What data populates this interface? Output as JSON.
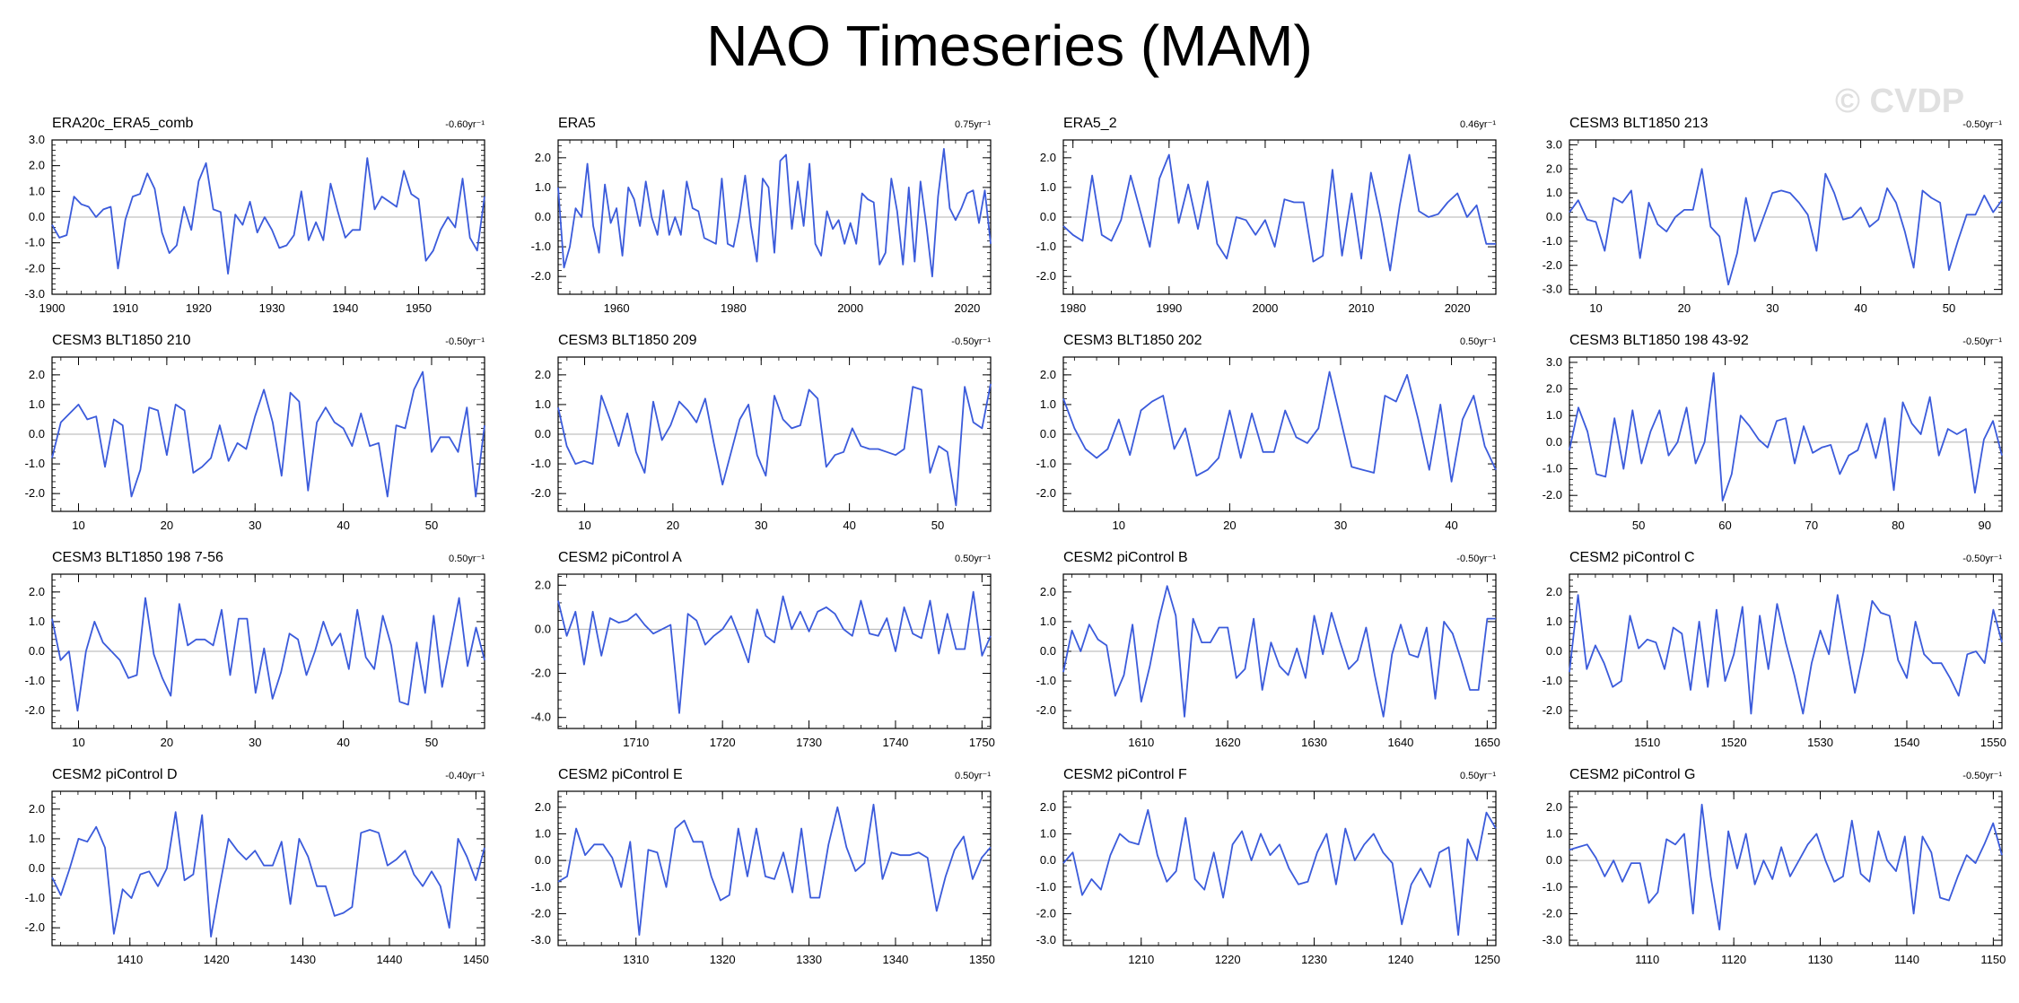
{
  "title": "NAO Timeseries (MAM)",
  "watermark": "© CVDP",
  "colors": {
    "line": "#3b5bdb",
    "zero": "#b0b0b0",
    "axis": "#000000"
  },
  "chart_data": [
    {
      "type": "line",
      "name": "ERA20c_ERA5_comb",
      "trend": "-0.60yr⁻¹",
      "xlim": [
        1900,
        1959
      ],
      "xticks": [
        1900,
        1910,
        1920,
        1930,
        1940,
        1950
      ],
      "ylim": [
        -3,
        3
      ],
      "yticks": [
        3,
        2,
        1,
        0,
        -1,
        -2,
        -3
      ],
      "values": [
        -0.3,
        -0.8,
        -0.7,
        0.8,
        0.5,
        0.4,
        0.0,
        0.3,
        0.4,
        -2.0,
        -0.1,
        0.8,
        0.9,
        1.7,
        1.1,
        -0.6,
        -1.4,
        -1.1,
        0.4,
        -0.5,
        1.4,
        2.1,
        0.3,
        0.2,
        -2.2,
        0.1,
        -0.3,
        0.6,
        -0.6,
        0.0,
        -0.5,
        -1.2,
        -1.1,
        -0.7,
        1.0,
        -0.9,
        -0.2,
        -0.9,
        1.3,
        0.2,
        -0.8,
        -0.5,
        -0.5,
        2.3,
        0.3,
        0.8,
        0.6,
        0.4,
        1.8,
        0.9,
        0.7,
        -1.7,
        -1.3,
        -0.5,
        0.0,
        -0.4,
        1.5,
        -0.8,
        -1.3,
        0.8
      ]
    },
    {
      "type": "line",
      "name": "ERA5",
      "trend": "0.75yr⁻¹",
      "xlim": [
        1950,
        2024
      ],
      "xticks": [
        1960,
        1980,
        2000,
        2020
      ],
      "ylim": [
        -2.6,
        2.6
      ],
      "yticks": [
        2,
        1,
        0,
        -1,
        -2
      ],
      "values": [
        1.0,
        -1.7,
        -1.0,
        0.3,
        0.0,
        1.8,
        -0.3,
        -1.2,
        1.1,
        -0.2,
        0.3,
        -1.3,
        1.0,
        0.6,
        -0.3,
        1.2,
        0.0,
        -0.6,
        0.9,
        -0.6,
        0.0,
        -0.6,
        1.2,
        0.3,
        0.2,
        -0.7,
        -0.8,
        -0.9,
        1.3,
        -0.9,
        -1.0,
        0.0,
        1.4,
        -0.3,
        -1.5,
        1.3,
        1.0,
        -1.2,
        1.9,
        2.1,
        -0.4,
        1.2,
        -0.3,
        1.8,
        -0.9,
        -1.3,
        0.2,
        -0.4,
        -0.1,
        -0.9,
        -0.2,
        -0.9,
        0.8,
        0.6,
        0.5,
        -1.6,
        -1.2,
        1.3,
        0.2,
        -1.6,
        1.0,
        -1.5,
        1.2,
        -0.3,
        -2.0,
        0.7,
        2.3,
        0.3,
        -0.1,
        0.3,
        0.8,
        0.9,
        -0.2,
        0.9,
        -0.9
      ]
    },
    {
      "type": "line",
      "name": "ERA5_2",
      "trend": "0.46yr⁻¹",
      "xlim": [
        1979,
        2024
      ],
      "xticks": [
        1980,
        1990,
        2000,
        2010,
        2020
      ],
      "ylim": [
        -2.6,
        2.6
      ],
      "yticks": [
        2,
        1,
        0,
        -1,
        -2
      ],
      "values": [
        -0.3,
        -0.6,
        -0.8,
        1.4,
        -0.6,
        -0.8,
        -0.1,
        1.4,
        0.2,
        -1.0,
        1.3,
        2.1,
        -0.2,
        1.1,
        -0.4,
        1.2,
        -0.9,
        -1.4,
        0.0,
        -0.1,
        -0.6,
        -0.1,
        -1.0,
        0.6,
        0.5,
        0.5,
        -1.5,
        -1.3,
        1.6,
        -1.3,
        0.8,
        -1.4,
        1.5,
        0.0,
        -1.8,
        0.4,
        2.1,
        0.2,
        0.0,
        0.1,
        0.5,
        0.8,
        0.0,
        0.4,
        -0.9,
        -0.9
      ]
    },
    {
      "type": "line",
      "name": "CESM3 BLT1850 213",
      "trend": "-0.50yr⁻¹",
      "xlim": [
        7,
        56
      ],
      "xticks": [
        10,
        20,
        30,
        40,
        50
      ],
      "ylim": [
        -3.2,
        3.2
      ],
      "yticks": [
        3,
        2,
        1,
        0,
        -1,
        -2,
        -3
      ],
      "values": [
        0.2,
        0.7,
        -0.1,
        -0.2,
        -1.4,
        0.8,
        0.6,
        1.1,
        -1.7,
        0.6,
        -0.3,
        -0.6,
        0.0,
        0.3,
        0.3,
        2.0,
        -0.4,
        -0.8,
        -2.8,
        -1.5,
        0.8,
        -1.0,
        0.0,
        1.0,
        1.1,
        1.0,
        0.6,
        0.1,
        -1.4,
        1.8,
        1.0,
        -0.1,
        0.0,
        0.4,
        -0.4,
        -0.1,
        1.2,
        0.6,
        -0.6,
        -2.1,
        1.1,
        0.8,
        0.6,
        -2.2,
        -1.0,
        0.1,
        0.1,
        0.9,
        0.2,
        0.7
      ]
    },
    {
      "type": "line",
      "name": "CESM3 BLT1850 210",
      "trend": "-0.50yr⁻¹",
      "xlim": [
        7,
        56
      ],
      "xticks": [
        10,
        20,
        30,
        40,
        50
      ],
      "ylim": [
        -2.6,
        2.6
      ],
      "yticks": [
        2,
        1,
        0,
        -1,
        -2
      ],
      "values": [
        -0.8,
        0.4,
        0.7,
        1.0,
        0.5,
        0.6,
        -1.1,
        0.5,
        0.3,
        -2.1,
        -1.2,
        0.9,
        0.8,
        -0.7,
        1.0,
        0.8,
        -1.3,
        -1.1,
        -0.8,
        0.3,
        -0.9,
        -0.3,
        -0.5,
        0.6,
        1.5,
        0.4,
        -1.4,
        1.4,
        1.1,
        -1.9,
        0.4,
        0.9,
        0.4,
        0.2,
        -0.4,
        0.7,
        -0.4,
        -0.3,
        -2.1,
        0.3,
        0.2,
        1.5,
        2.1,
        -0.6,
        -0.1,
        -0.1,
        -0.6,
        0.9,
        -2.1,
        0.3
      ]
    },
    {
      "type": "line",
      "name": "CESM3 BLT1850 209",
      "trend": "-0.50yr⁻¹",
      "xlim": [
        7,
        56
      ],
      "xticks": [
        10,
        20,
        30,
        40,
        50
      ],
      "ylim": [
        -2.6,
        2.6
      ],
      "yticks": [
        2,
        1,
        0,
        -1,
        -2
      ],
      "values": [
        0.9,
        -0.4,
        -1.0,
        -0.9,
        -1.0,
        1.3,
        0.5,
        -0.4,
        0.7,
        -0.6,
        -1.3,
        1.1,
        -0.2,
        0.3,
        1.1,
        0.8,
        0.4,
        1.2,
        -0.3,
        -1.7,
        -0.6,
        0.5,
        1.0,
        -0.7,
        -1.4,
        1.3,
        0.5,
        0.2,
        0.3,
        1.5,
        1.2,
        -1.1,
        -0.7,
        -0.6,
        0.2,
        -0.4,
        -0.5,
        -0.5,
        -0.6,
        -0.7,
        -0.5,
        1.6,
        1.5,
        -1.3,
        -0.4,
        -0.6,
        -2.4,
        1.6,
        0.4,
        0.2,
        1.7
      ]
    },
    {
      "type": "line",
      "name": "CESM3 BLT1850 202",
      "trend": "0.50yr⁻¹",
      "xlim": [
        5,
        44
      ],
      "xticks": [
        10,
        20,
        30,
        40
      ],
      "ylim": [
        -2.6,
        2.6
      ],
      "yticks": [
        2,
        1,
        0,
        -1,
        -2
      ],
      "values": [
        1.2,
        0.2,
        -0.5,
        -0.8,
        -0.5,
        0.5,
        -0.7,
        0.8,
        1.1,
        1.3,
        -0.5,
        0.2,
        -1.4,
        -1.2,
        -0.8,
        0.8,
        -0.8,
        0.7,
        -0.6,
        -0.6,
        0.8,
        -0.1,
        -0.3,
        0.2,
        2.1,
        0.5,
        -1.1,
        -1.2,
        -1.3,
        1.3,
        1.1,
        2.0,
        0.5,
        -1.2,
        1.0,
        -1.6,
        0.5,
        1.3,
        -0.4,
        -1.2
      ]
    },
    {
      "type": "line",
      "name": "CESM3 BLT1850 198 43-92",
      "trend": "-0.50yr⁻¹",
      "xlim": [
        42,
        92
      ],
      "xticks": [
        50,
        60,
        70,
        80,
        90
      ],
      "ylim": [
        -2.6,
        3.2
      ],
      "yticks": [
        3,
        2,
        1,
        0,
        -1,
        -2
      ],
      "values": [
        -0.3,
        1.3,
        0.4,
        -1.2,
        -1.3,
        0.9,
        -1.0,
        1.2,
        -0.8,
        0.4,
        1.2,
        -0.5,
        0.0,
        1.3,
        -0.8,
        0.0,
        2.6,
        -2.2,
        -1.2,
        1.0,
        0.6,
        0.1,
        -0.2,
        0.8,
        0.9,
        -0.8,
        0.6,
        -0.4,
        -0.2,
        -0.1,
        -1.2,
        -0.5,
        -0.3,
        0.7,
        -0.6,
        0.9,
        -1.8,
        1.5,
        0.7,
        0.3,
        1.7,
        -0.5,
        0.5,
        0.3,
        0.5,
        -1.9,
        0.1,
        0.8,
        -0.5
      ]
    },
    {
      "type": "line",
      "name": "CESM3 BLT1850 198 7-56",
      "trend": "0.50yr⁻¹",
      "xlim": [
        7,
        56
      ],
      "xticks": [
        10,
        20,
        30,
        40,
        50
      ],
      "ylim": [
        -2.6,
        2.6
      ],
      "yticks": [
        2,
        1,
        0,
        -1,
        -2
      ],
      "values": [
        1.1,
        -0.3,
        0.0,
        -2.0,
        0.0,
        1.0,
        0.3,
        0.0,
        -0.3,
        -0.9,
        -0.8,
        1.8,
        -0.1,
        -0.9,
        -1.5,
        1.6,
        0.2,
        0.4,
        0.4,
        0.2,
        1.4,
        -0.8,
        1.1,
        1.1,
        -1.4,
        0.1,
        -1.6,
        -0.7,
        0.6,
        0.4,
        -0.8,
        0.0,
        1.0,
        0.2,
        0.6,
        -0.6,
        1.4,
        -0.2,
        -0.6,
        1.2,
        0.2,
        -1.7,
        -1.8,
        0.3,
        -1.4,
        1.2,
        -1.2,
        0.3,
        1.8,
        -0.5,
        0.8,
        -0.3
      ]
    },
    {
      "type": "line",
      "name": "CESM2 piControl A",
      "trend": "0.50yr⁻¹",
      "xlim": [
        1701,
        1751
      ],
      "xticks": [
        1710,
        1720,
        1730,
        1740,
        1750
      ],
      "ylim": [
        -4.5,
        2.5
      ],
      "yticks": [
        2,
        0,
        -2,
        -4
      ],
      "values": [
        1.3,
        -0.3,
        0.8,
        -1.6,
        0.8,
        -1.2,
        0.5,
        0.3,
        0.4,
        0.7,
        0.2,
        -0.2,
        0.0,
        0.2,
        -3.8,
        0.7,
        0.4,
        -0.7,
        -0.3,
        0.0,
        0.6,
        -0.4,
        -1.5,
        0.9,
        -0.3,
        -0.6,
        1.5,
        0.0,
        0.8,
        -0.1,
        0.8,
        1.0,
        0.7,
        0.0,
        -0.3,
        1.3,
        -0.2,
        -0.3,
        0.5,
        -1.0,
        1.0,
        -0.2,
        -0.4,
        1.3,
        -1.1,
        0.7,
        -0.9,
        -0.9,
        1.7,
        -1.2,
        -0.3
      ]
    },
    {
      "type": "line",
      "name": "CESM2 piControl B",
      "trend": "-0.50yr⁻¹",
      "xlim": [
        1601,
        1651
      ],
      "xticks": [
        1610,
        1620,
        1630,
        1640,
        1650
      ],
      "ylim": [
        -2.6,
        2.6
      ],
      "yticks": [
        2,
        1,
        0,
        -1,
        -2
      ],
      "values": [
        -0.7,
        0.7,
        0.0,
        0.9,
        0.4,
        0.2,
        -1.5,
        -0.8,
        0.9,
        -1.7,
        -0.5,
        1.0,
        2.2,
        1.2,
        -2.2,
        1.1,
        0.3,
        0.3,
        0.8,
        0.8,
        -0.9,
        -0.6,
        1.1,
        -1.3,
        0.3,
        -0.5,
        -0.8,
        0.1,
        -0.9,
        1.2,
        -0.1,
        1.3,
        0.3,
        -0.6,
        -0.3,
        0.8,
        -0.8,
        -2.2,
        -0.1,
        0.9,
        -0.1,
        -0.2,
        0.8,
        -1.6,
        1.0,
        0.6,
        -0.3,
        -1.3,
        -1.3,
        1.1,
        1.1
      ]
    },
    {
      "type": "line",
      "name": "CESM2 piControl C",
      "trend": "-0.50yr⁻¹",
      "xlim": [
        1501,
        1551
      ],
      "xticks": [
        1510,
        1520,
        1530,
        1540,
        1550
      ],
      "ylim": [
        -2.6,
        2.6
      ],
      "yticks": [
        2,
        1,
        0,
        -1,
        -2
      ],
      "values": [
        -0.7,
        1.9,
        -0.6,
        0.2,
        -0.4,
        -1.2,
        -1.0,
        1.2,
        0.1,
        0.4,
        0.3,
        -0.6,
        0.8,
        0.6,
        -1.3,
        1.0,
        -1.2,
        1.4,
        -1.0,
        -0.1,
        1.5,
        -2.1,
        1.2,
        -0.6,
        1.6,
        0.3,
        -0.8,
        -2.1,
        -0.4,
        0.7,
        -0.1,
        1.9,
        0.2,
        -1.4,
        0.0,
        1.7,
        1.3,
        1.2,
        -0.3,
        -0.9,
        1.0,
        -0.1,
        -0.4,
        -0.4,
        -0.9,
        -1.5,
        -0.1,
        0.0,
        -0.4,
        1.4,
        0.3
      ]
    },
    {
      "type": "line",
      "name": "CESM2 piControl D",
      "trend": "-0.40yr⁻¹",
      "xlim": [
        1401,
        1451
      ],
      "xticks": [
        1410,
        1420,
        1430,
        1440,
        1450
      ],
      "ylim": [
        -2.6,
        2.6
      ],
      "yticks": [
        2,
        1,
        0,
        -1,
        -2
      ],
      "values": [
        -0.3,
        -0.9,
        0.0,
        1.0,
        0.9,
        1.4,
        0.7,
        -2.2,
        -0.7,
        -1.0,
        -0.2,
        -0.1,
        -0.6,
        0.0,
        1.9,
        -0.4,
        -0.2,
        1.8,
        -2.3,
        -0.6,
        1.0,
        0.6,
        0.3,
        0.6,
        0.1,
        0.1,
        0.9,
        -1.2,
        1.0,
        0.4,
        -0.6,
        -0.6,
        -1.6,
        -1.5,
        -1.3,
        1.2,
        1.3,
        1.2,
        0.1,
        0.3,
        0.6,
        -0.2,
        -0.6,
        -0.1,
        -0.6,
        -2.0,
        1.0,
        0.4,
        -0.4,
        0.7
      ]
    },
    {
      "type": "line",
      "name": "CESM2 piControl E",
      "trend": "0.50yr⁻¹",
      "xlim": [
        1301,
        1351
      ],
      "xticks": [
        1310,
        1320,
        1330,
        1340,
        1350
      ],
      "ylim": [
        -3.2,
        2.6
      ],
      "yticks": [
        2,
        1,
        0,
        -1,
        -2,
        -3
      ],
      "values": [
        -0.8,
        -0.6,
        1.2,
        0.2,
        0.6,
        0.6,
        0.1,
        -1.0,
        0.7,
        -2.8,
        0.4,
        0.3,
        -1.0,
        1.2,
        1.5,
        0.7,
        0.7,
        -0.6,
        -1.5,
        -1.3,
        1.2,
        -0.6,
        1.2,
        -0.6,
        -0.7,
        0.3,
        -1.2,
        1.2,
        -1.4,
        -1.4,
        0.6,
        2.0,
        0.5,
        -0.4,
        -0.1,
        2.1,
        -0.7,
        0.3,
        0.2,
        0.2,
        0.3,
        0.1,
        -1.9,
        -0.6,
        0.4,
        0.9,
        -0.7,
        0.1,
        0.5
      ]
    },
    {
      "type": "line",
      "name": "CESM2 piControl F",
      "trend": "0.50yr⁻¹",
      "xlim": [
        1201,
        1251
      ],
      "xticks": [
        1210,
        1220,
        1230,
        1240,
        1250
      ],
      "ylim": [
        -3.2,
        2.6
      ],
      "yticks": [
        2,
        1,
        0,
        -1,
        -2,
        -3
      ],
      "values": [
        -0.1,
        0.3,
        -1.3,
        -0.7,
        -1.1,
        0.2,
        1.0,
        0.7,
        0.6,
        1.9,
        0.2,
        -0.8,
        -0.4,
        1.6,
        -0.7,
        -1.1,
        0.3,
        -1.4,
        0.6,
        1.1,
        0.0,
        1.0,
        0.2,
        0.6,
        -0.3,
        -0.9,
        -0.8,
        0.3,
        1.0,
        -0.9,
        1.2,
        0.0,
        0.6,
        1.0,
        0.3,
        -0.1,
        -2.4,
        -0.9,
        -0.3,
        -1.0,
        0.3,
        0.5,
        -2.8,
        0.8,
        0.0,
        1.8,
        1.2
      ]
    },
    {
      "type": "line",
      "name": "CESM2 piControl G",
      "trend": "-0.50yr⁻¹",
      "xlim": [
        1101,
        1151
      ],
      "xticks": [
        1110,
        1120,
        1130,
        1140,
        1150
      ],
      "ylim": [
        -3.2,
        2.6
      ],
      "yticks": [
        2,
        1,
        0,
        -1,
        -2,
        -3
      ],
      "values": [
        0.4,
        0.5,
        0.6,
        0.1,
        -0.6,
        0.0,
        -0.8,
        -0.1,
        -0.1,
        -1.6,
        -1.2,
        0.8,
        0.6,
        1.0,
        -2.0,
        2.1,
        -0.6,
        -2.6,
        1.1,
        -0.3,
        1.0,
        -0.9,
        0.0,
        -0.7,
        0.5,
        -0.6,
        0.0,
        0.6,
        1.0,
        0.0,
        -0.8,
        -0.6,
        1.5,
        -0.5,
        -0.8,
        1.1,
        0.0,
        -0.4,
        0.9,
        -2.0,
        0.9,
        0.3,
        -1.4,
        -1.5,
        -0.6,
        0.2,
        -0.1,
        0.6,
        1.4,
        0.2
      ]
    }
  ]
}
